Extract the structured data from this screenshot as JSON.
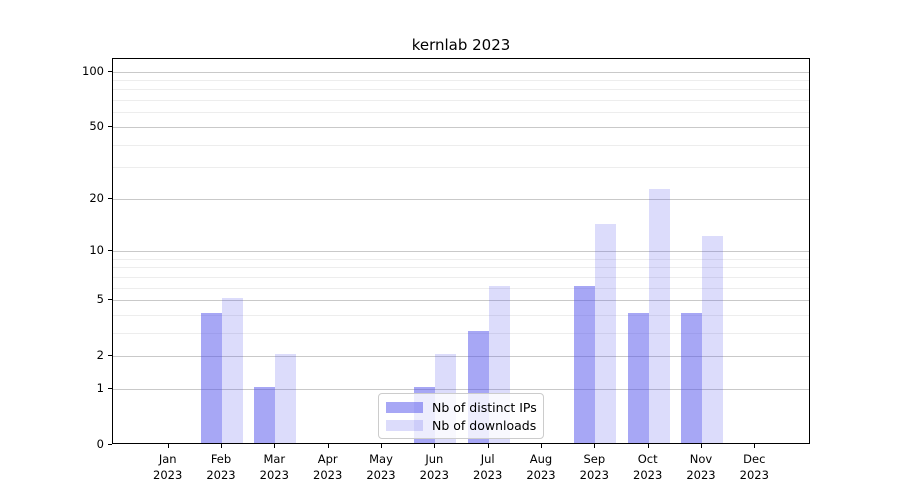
{
  "title": "kernlab 2023",
  "chart_data": {
    "type": "bar",
    "title": "kernlab 2023",
    "categories": [
      "Jan",
      "Feb",
      "Mar",
      "Apr",
      "May",
      "Jun",
      "Jul",
      "Aug",
      "Sep",
      "Oct",
      "Nov",
      "Dec"
    ],
    "year_label": "2023",
    "series": [
      {
        "name": "Nb of distinct IPs",
        "color": "rgba(80,80,235,0.5)",
        "values": [
          0,
          4,
          1,
          0,
          0,
          1,
          3,
          0,
          6,
          4,
          4,
          0
        ]
      },
      {
        "name": "Nb of downloads",
        "color": "rgba(80,80,235,0.2)",
        "values": [
          0,
          5,
          2,
          0,
          0,
          2,
          6,
          0,
          14,
          22,
          12,
          0
        ]
      }
    ],
    "yscale": "log1p",
    "ylim": [
      0,
      117
    ],
    "yticks": [
      0,
      1,
      2,
      5,
      10,
      20,
      50,
      100
    ],
    "yticks_minor": [
      3,
      4,
      6,
      7,
      8,
      9,
      30,
      40,
      60,
      70,
      80,
      90
    ],
    "grid": "horizontal",
    "legend_position": "bottom-center",
    "colors": {
      "axis": "#000000",
      "grid_major": "#c9c9c9",
      "grid_minor": "#ededed",
      "legend_border": "#cccccc"
    }
  }
}
